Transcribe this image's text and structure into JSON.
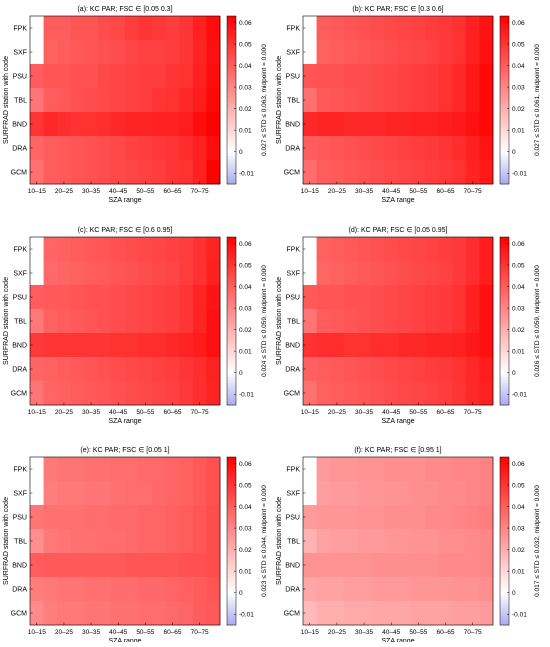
{
  "figure": {
    "colormap": {
      "low": "#a9a9f0",
      "mid": "#ffffff",
      "high": "#ff0000"
    }
  },
  "chart_data": [
    {
      "type": "heatmap",
      "title": "(a): KC PAR;  FSC ∈ [0.05 0.3]",
      "xlabel": "SZA range",
      "ylabel": "SURFRAD station with code",
      "colorbar_label": "0.027 ≤ STD ≤ 0.063, midpoint =  0.000",
      "colorbar_ticks": [
        "0.06",
        "0.05",
        "0.04",
        "0.03",
        "0.02",
        "0.01",
        "0",
        "-0.01"
      ],
      "clim": [
        -0.015,
        0.063
      ],
      "x": [
        "10–15",
        "20–25",
        "30–35",
        "40–45",
        "50–55",
        "60–65",
        "70–75"
      ],
      "x_bins": [
        "10–15",
        "15–20",
        "20–25",
        "25–30",
        "30–35",
        "35–40",
        "40–45",
        "45–50",
        "50–55",
        "55–60",
        "60–65",
        "65–70",
        "70–75",
        "75–80"
      ],
      "y": [
        "FPK",
        "SXF",
        "PSU",
        "TBL",
        "BND",
        "DRA",
        "GCM"
      ],
      "values": [
        [
          null,
          0.04,
          0.04,
          0.042,
          0.042,
          0.044,
          0.045,
          0.048,
          0.05,
          0.049,
          0.048,
          0.05,
          0.055,
          0.06
        ],
        [
          null,
          0.039,
          0.04,
          0.041,
          0.042,
          0.043,
          0.044,
          0.046,
          0.047,
          0.047,
          0.048,
          0.05,
          0.054,
          0.059
        ],
        [
          0.04,
          0.042,
          0.042,
          0.043,
          0.043,
          0.045,
          0.046,
          0.047,
          0.048,
          0.048,
          0.05,
          0.051,
          0.055,
          0.06
        ],
        [
          0.034,
          0.04,
          0.041,
          0.043,
          0.044,
          0.045,
          0.046,
          0.047,
          0.048,
          0.05,
          0.051,
          0.053,
          0.056,
          0.061
        ],
        [
          0.05,
          0.053,
          0.052,
          0.051,
          0.051,
          0.052,
          0.053,
          0.054,
          0.054,
          0.055,
          0.055,
          0.056,
          0.06,
          0.063
        ],
        [
          0.038,
          0.04,
          0.041,
          0.042,
          0.043,
          0.044,
          0.045,
          0.047,
          0.048,
          0.049,
          0.05,
          0.052,
          0.055,
          0.06
        ],
        [
          0.035,
          0.04,
          0.041,
          0.042,
          0.043,
          0.044,
          0.045,
          0.046,
          0.047,
          0.048,
          0.05,
          0.051,
          0.055,
          0.063
        ]
      ]
    },
    {
      "type": "heatmap",
      "title": "(b): KC PAR;  FSC ∈ [0.3 0.6]",
      "xlabel": "SZA range",
      "ylabel": "SURFRAD station with code",
      "colorbar_label": "0.027 ≤ STD ≤ 0.061, midpoint =  0.000",
      "colorbar_ticks": [
        "0.06",
        "0.05",
        "0.04",
        "0.03",
        "0.02",
        "0.01",
        "0",
        "-0.01"
      ],
      "clim": [
        -0.015,
        0.063
      ],
      "x": [
        "10–15",
        "20–25",
        "30–35",
        "40–45",
        "50–55",
        "60–65",
        "70–75"
      ],
      "x_bins": [
        "10–15",
        "15–20",
        "20–25",
        "25–30",
        "30–35",
        "35–40",
        "40–45",
        "45–50",
        "50–55",
        "55–60",
        "60–65",
        "65–70",
        "70–75",
        "75–80"
      ],
      "y": [
        "FPK",
        "SXF",
        "PSU",
        "TBL",
        "BND",
        "DRA",
        "GCM"
      ],
      "values": [
        [
          null,
          0.04,
          0.041,
          0.042,
          0.043,
          0.044,
          0.045,
          0.046,
          0.047,
          0.048,
          0.049,
          0.051,
          0.055,
          0.058
        ],
        [
          null,
          0.039,
          0.04,
          0.041,
          0.042,
          0.043,
          0.044,
          0.045,
          0.046,
          0.047,
          0.049,
          0.051,
          0.055,
          0.059
        ],
        [
          0.042,
          0.043,
          0.043,
          0.044,
          0.044,
          0.045,
          0.046,
          0.047,
          0.048,
          0.049,
          0.051,
          0.053,
          0.057,
          0.061
        ],
        [
          0.035,
          0.041,
          0.042,
          0.043,
          0.044,
          0.045,
          0.046,
          0.047,
          0.048,
          0.049,
          0.051,
          0.053,
          0.057,
          0.061
        ],
        [
          0.053,
          0.054,
          0.054,
          0.053,
          0.053,
          0.053,
          0.054,
          0.054,
          0.055,
          0.055,
          0.056,
          0.057,
          0.059,
          0.061
        ],
        [
          0.04,
          0.041,
          0.042,
          0.043,
          0.044,
          0.045,
          0.046,
          0.047,
          0.048,
          0.049,
          0.05,
          0.052,
          0.055,
          0.058
        ],
        [
          0.036,
          0.04,
          0.041,
          0.042,
          0.043,
          0.044,
          0.045,
          0.046,
          0.047,
          0.048,
          0.049,
          0.051,
          0.054,
          0.057
        ]
      ]
    },
    {
      "type": "heatmap",
      "title": "(c): KC PAR;  FSC ∈ [0.6 0.95]",
      "xlabel": "SZA range",
      "ylabel": "SURFRAD station with code",
      "colorbar_label": "0.024 ≤ STD ≤ 0.059, midpoint =  0.000",
      "colorbar_ticks": [
        "0.06",
        "0.05",
        "0.04",
        "0.03",
        "0.02",
        "0.01",
        "0",
        "-0.01"
      ],
      "clim": [
        -0.015,
        0.063
      ],
      "x": [
        "10–15",
        "20–25",
        "30–35",
        "40–45",
        "50–55",
        "60–65",
        "70–75"
      ],
      "x_bins": [
        "10–15",
        "15–20",
        "20–25",
        "25–30",
        "30–35",
        "35–40",
        "40–45",
        "45–50",
        "50–55",
        "55–60",
        "60–65",
        "65–70",
        "70–75",
        "75–80"
      ],
      "y": [
        "FPK",
        "SXF",
        "PSU",
        "TBL",
        "BND",
        "DRA",
        "GCM"
      ],
      "values": [
        [
          null,
          0.038,
          0.039,
          0.04,
          0.041,
          0.042,
          0.043,
          0.044,
          0.045,
          0.046,
          0.047,
          0.048,
          0.051,
          0.054
        ],
        [
          null,
          0.037,
          0.038,
          0.039,
          0.04,
          0.041,
          0.042,
          0.043,
          0.044,
          0.045,
          0.046,
          0.048,
          0.051,
          0.055
        ],
        [
          0.04,
          0.041,
          0.041,
          0.042,
          0.043,
          0.043,
          0.044,
          0.045,
          0.046,
          0.047,
          0.048,
          0.05,
          0.054,
          0.058
        ],
        [
          0.033,
          0.039,
          0.04,
          0.041,
          0.042,
          0.043,
          0.044,
          0.045,
          0.046,
          0.047,
          0.048,
          0.05,
          0.054,
          0.059
        ],
        [
          0.049,
          0.05,
          0.05,
          0.05,
          0.05,
          0.05,
          0.051,
          0.051,
          0.052,
          0.052,
          0.053,
          0.054,
          0.056,
          0.059
        ],
        [
          0.038,
          0.039,
          0.04,
          0.041,
          0.042,
          0.043,
          0.044,
          0.045,
          0.046,
          0.047,
          0.048,
          0.05,
          0.052,
          0.055
        ],
        [
          0.034,
          0.038,
          0.039,
          0.04,
          0.041,
          0.042,
          0.043,
          0.044,
          0.045,
          0.046,
          0.047,
          0.049,
          0.052,
          0.054
        ]
      ]
    },
    {
      "type": "heatmap",
      "title": "(d): KC PAR;  FSC ∈ [0.05 0.95]",
      "xlabel": "SZA range",
      "ylabel": "SURFRAD station with code",
      "colorbar_label": "0.026 ≤ STD ≤ 0.059, midpoint =  0.000",
      "colorbar_ticks": [
        "0.06",
        "0.05",
        "0.04",
        "0.03",
        "0.02",
        "0.01",
        "0",
        "-0.01"
      ],
      "clim": [
        -0.015,
        0.063
      ],
      "x": [
        "10–15",
        "20–25",
        "30–35",
        "40–45",
        "50–55",
        "60–65",
        "70–75"
      ],
      "x_bins": [
        "10–15",
        "15–20",
        "20–25",
        "25–30",
        "30–35",
        "35–40",
        "40–45",
        "45–50",
        "50–55",
        "55–60",
        "60–65",
        "65–70",
        "70–75",
        "75–80"
      ],
      "y": [
        "FPK",
        "SXF",
        "PSU",
        "TBL",
        "BND",
        "DRA",
        "GCM"
      ],
      "values": [
        [
          null,
          0.039,
          0.04,
          0.041,
          0.042,
          0.043,
          0.044,
          0.045,
          0.046,
          0.047,
          0.048,
          0.049,
          0.052,
          0.056
        ],
        [
          null,
          0.038,
          0.039,
          0.04,
          0.041,
          0.042,
          0.043,
          0.044,
          0.045,
          0.046,
          0.047,
          0.049,
          0.052,
          0.056
        ],
        [
          0.041,
          0.042,
          0.042,
          0.043,
          0.043,
          0.044,
          0.045,
          0.046,
          0.047,
          0.048,
          0.049,
          0.051,
          0.055,
          0.059
        ],
        [
          0.034,
          0.04,
          0.041,
          0.042,
          0.043,
          0.044,
          0.045,
          0.046,
          0.047,
          0.048,
          0.049,
          0.051,
          0.055,
          0.059
        ],
        [
          0.051,
          0.052,
          0.052,
          0.051,
          0.051,
          0.052,
          0.052,
          0.053,
          0.053,
          0.054,
          0.054,
          0.055,
          0.057,
          0.059
        ],
        [
          0.039,
          0.04,
          0.041,
          0.042,
          0.043,
          0.044,
          0.045,
          0.046,
          0.047,
          0.048,
          0.049,
          0.051,
          0.053,
          0.056
        ],
        [
          0.035,
          0.039,
          0.04,
          0.041,
          0.042,
          0.043,
          0.044,
          0.045,
          0.046,
          0.047,
          0.048,
          0.05,
          0.053,
          0.055
        ]
      ]
    },
    {
      "type": "heatmap",
      "title": "(e): KC PAR;  FSC ∈ [0.05 1]",
      "xlabel": "SZA range",
      "ylabel": "SURFRAD station with code",
      "colorbar_label": "0.023 ≤ STD ≤ 0.044, midpoint =  0.000",
      "colorbar_ticks": [
        "0.06",
        "0.05",
        "0.04",
        "0.03",
        "0.02",
        "0.01",
        "0",
        "-0.01"
      ],
      "clim": [
        -0.015,
        0.063
      ],
      "x": [
        "10–15",
        "20–25",
        "30–35",
        "40–45",
        "50–55",
        "60–65",
        "70–75"
      ],
      "x_bins": [
        "10–15",
        "15–20",
        "20–25",
        "25–30",
        "30–35",
        "35–40",
        "40–45",
        "45–50",
        "50–55",
        "55–60",
        "60–65",
        "65–70",
        "70–75",
        "75–80"
      ],
      "y": [
        "FPK",
        "SXF",
        "PSU",
        "TBL",
        "BND",
        "DRA",
        "GCM"
      ],
      "values": [
        [
          null,
          0.033,
          0.034,
          0.034,
          0.035,
          0.035,
          0.036,
          0.036,
          0.037,
          0.037,
          0.038,
          0.039,
          0.041,
          0.043
        ],
        [
          null,
          0.032,
          0.033,
          0.033,
          0.034,
          0.034,
          0.035,
          0.036,
          0.036,
          0.037,
          0.038,
          0.039,
          0.041,
          0.043
        ],
        [
          0.034,
          0.035,
          0.035,
          0.035,
          0.036,
          0.036,
          0.037,
          0.037,
          0.038,
          0.038,
          0.039,
          0.04,
          0.042,
          0.044
        ],
        [
          0.028,
          0.033,
          0.034,
          0.035,
          0.035,
          0.036,
          0.036,
          0.037,
          0.038,
          0.038,
          0.039,
          0.04,
          0.042,
          0.044
        ],
        [
          0.04,
          0.041,
          0.041,
          0.041,
          0.041,
          0.041,
          0.041,
          0.042,
          0.042,
          0.042,
          0.042,
          0.043,
          0.043,
          0.044
        ],
        [
          0.032,
          0.033,
          0.034,
          0.034,
          0.035,
          0.035,
          0.036,
          0.036,
          0.037,
          0.037,
          0.038,
          0.039,
          0.04,
          0.042
        ],
        [
          0.029,
          0.032,
          0.033,
          0.033,
          0.034,
          0.034,
          0.035,
          0.035,
          0.036,
          0.036,
          0.037,
          0.038,
          0.04,
          0.041
        ]
      ]
    },
    {
      "type": "heatmap",
      "title": "(f): KC PAR;  FSC ∈ [0.95 1]",
      "xlabel": "SZA range",
      "ylabel": "SURFRAD station with code",
      "colorbar_label": "0.017 ≤ STD ≤ 0.032, midpoint =  0.000",
      "colorbar_ticks": [
        "0.06",
        "0.05",
        "0.04",
        "0.03",
        "0.02",
        "0.01",
        "0",
        "-0.01"
      ],
      "clim": [
        -0.015,
        0.063
      ],
      "x": [
        "10–15",
        "20–25",
        "30–35",
        "40–45",
        "50–55",
        "60–65",
        "70–75"
      ],
      "x_bins": [
        "10–15",
        "15–20",
        "20–25",
        "25–30",
        "30–35",
        "35–40",
        "40–45",
        "45–50",
        "50–55",
        "55–60",
        "60–65",
        "65–70",
        "70–75",
        "75–80"
      ],
      "y": [
        "FPK",
        "SXF",
        "PSU",
        "TBL",
        "BND",
        "DRA",
        "GCM"
      ],
      "values": [
        [
          null,
          0.025,
          0.026,
          0.026,
          0.027,
          0.027,
          0.028,
          0.028,
          0.028,
          0.029,
          0.029,
          0.03,
          0.03,
          0.031
        ],
        [
          null,
          0.024,
          0.025,
          0.025,
          0.026,
          0.026,
          0.027,
          0.027,
          0.028,
          0.028,
          0.029,
          0.029,
          0.03,
          0.031
        ],
        [
          0.025,
          0.026,
          0.026,
          0.026,
          0.027,
          0.027,
          0.028,
          0.028,
          0.028,
          0.029,
          0.029,
          0.03,
          0.031,
          0.032
        ],
        [
          0.019,
          0.023,
          0.024,
          0.024,
          0.025,
          0.025,
          0.026,
          0.026,
          0.027,
          0.027,
          0.028,
          0.028,
          0.029,
          0.03
        ],
        [
          0.027,
          0.027,
          0.027,
          0.027,
          0.027,
          0.028,
          0.028,
          0.028,
          0.028,
          0.028,
          0.029,
          0.029,
          0.029,
          0.03
        ],
        [
          0.022,
          0.023,
          0.023,
          0.024,
          0.024,
          0.025,
          0.025,
          0.025,
          0.026,
          0.026,
          0.026,
          0.027,
          0.027,
          0.028
        ],
        [
          0.017,
          0.02,
          0.02,
          0.021,
          0.021,
          0.022,
          0.022,
          0.022,
          0.023,
          0.023,
          0.023,
          0.024,
          0.024,
          0.025
        ]
      ]
    }
  ]
}
